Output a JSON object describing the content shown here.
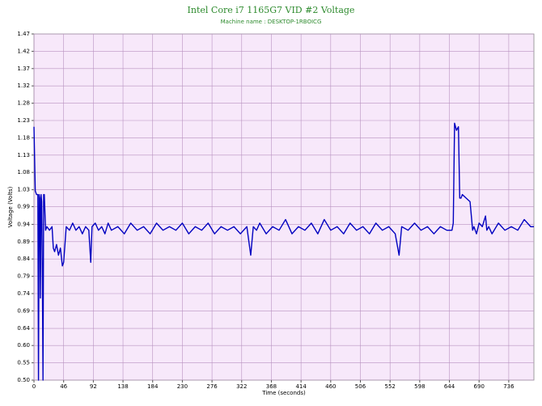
{
  "chart_data": {
    "type": "line",
    "title": "Intel Core i7 1165G7 VID #2 Voltage",
    "subtitle": "Machine name : DESKTOP-1RBOICG",
    "x_label": "Time (seconds)",
    "y_label": "Voltage (Volts)",
    "x": [
      0,
      2,
      4,
      6,
      7,
      8,
      9,
      10,
      11,
      12,
      13,
      14,
      15,
      16,
      18,
      20,
      24,
      28,
      30,
      32,
      35,
      38,
      41,
      44,
      46,
      50,
      55,
      60,
      65,
      70,
      75,
      80,
      85,
      88,
      90,
      95,
      100,
      105,
      110,
      115,
      120,
      130,
      140,
      150,
      160,
      170,
      180,
      190,
      200,
      210,
      220,
      230,
      240,
      250,
      260,
      270,
      280,
      290,
      300,
      310,
      320,
      330,
      336,
      340,
      345,
      350,
      360,
      370,
      380,
      390,
      400,
      410,
      420,
      430,
      440,
      450,
      460,
      470,
      480,
      490,
      500,
      510,
      520,
      530,
      540,
      550,
      560,
      566,
      570,
      580,
      590,
      600,
      610,
      620,
      630,
      640,
      648,
      650,
      652,
      655,
      658,
      660,
      662,
      664,
      670,
      676,
      680,
      682,
      686,
      690,
      695,
      700,
      702,
      705,
      710,
      720,
      730,
      740,
      750,
      760,
      770,
      775
    ],
    "series": [
      {
        "name": "VID #2",
        "color": "#0000c0",
        "values": [
          1.21,
          1.03,
          1.02,
          1.02,
          0.5,
          1.02,
          1.01,
          0.73,
          1.02,
          1.0,
          0.8,
          0.5,
          1.02,
          1.02,
          0.92,
          0.93,
          0.92,
          0.93,
          0.87,
          0.86,
          0.88,
          0.85,
          0.87,
          0.82,
          0.83,
          0.93,
          0.92,
          0.94,
          0.92,
          0.93,
          0.91,
          0.93,
          0.92,
          0.83,
          0.93,
          0.94,
          0.92,
          0.93,
          0.91,
          0.94,
          0.92,
          0.93,
          0.91,
          0.94,
          0.92,
          0.93,
          0.91,
          0.94,
          0.92,
          0.93,
          0.92,
          0.94,
          0.91,
          0.93,
          0.92,
          0.94,
          0.91,
          0.93,
          0.92,
          0.93,
          0.91,
          0.93,
          0.85,
          0.93,
          0.92,
          0.94,
          0.91,
          0.93,
          0.92,
          0.95,
          0.91,
          0.93,
          0.92,
          0.94,
          0.91,
          0.95,
          0.92,
          0.93,
          0.91,
          0.94,
          0.92,
          0.93,
          0.91,
          0.94,
          0.92,
          0.93,
          0.91,
          0.85,
          0.93,
          0.92,
          0.94,
          0.92,
          0.93,
          0.91,
          0.93,
          0.92,
          0.92,
          0.94,
          1.22,
          1.2,
          1.21,
          1.01,
          1.01,
          1.02,
          1.01,
          1.0,
          0.92,
          0.93,
          0.91,
          0.94,
          0.93,
          0.96,
          0.92,
          0.93,
          0.91,
          0.94,
          0.92,
          0.93,
          0.92,
          0.95,
          0.93,
          0.93
        ]
      }
    ],
    "xlim": [
      0,
      775
    ],
    "xticks": [
      0,
      46,
      92,
      138,
      184,
      230,
      276,
      322,
      368,
      414,
      460,
      506,
      552,
      598,
      644,
      690,
      736
    ],
    "ylim": [
      0.5,
      1.47
    ],
    "yticks": [
      {
        "value": 0.5,
        "label": "0.50"
      },
      {
        "value": 0.5485,
        "label": "0.55"
      },
      {
        "value": 0.597,
        "label": "0.60"
      },
      {
        "value": 0.6449,
        "label": "0.64"
      },
      {
        "value": 0.694,
        "label": "0.69"
      },
      {
        "value": 0.7425,
        "label": "0.74"
      },
      {
        "value": 0.791,
        "label": "0.79"
      },
      {
        "value": 0.8395,
        "label": "0.84"
      },
      {
        "value": 0.888,
        "label": "0.89"
      },
      {
        "value": 0.9365,
        "label": "0.94"
      },
      {
        "value": 0.986,
        "label": "0.99"
      },
      {
        "value": 1.0335,
        "label": "1.03"
      },
      {
        "value": 1.082,
        "label": "1.08"
      },
      {
        "value": 1.1305,
        "label": "1.13"
      },
      {
        "value": 1.179,
        "label": "1.18"
      },
      {
        "value": 1.2275,
        "label": "1.23"
      },
      {
        "value": 1.276,
        "label": "1.28"
      },
      {
        "value": 1.3245,
        "label": "1.32"
      },
      {
        "value": 1.373,
        "label": "1.37"
      },
      {
        "value": 1.4215,
        "label": "1.42"
      },
      {
        "value": 1.47,
        "label": "1.47"
      }
    ],
    "grid": true
  }
}
